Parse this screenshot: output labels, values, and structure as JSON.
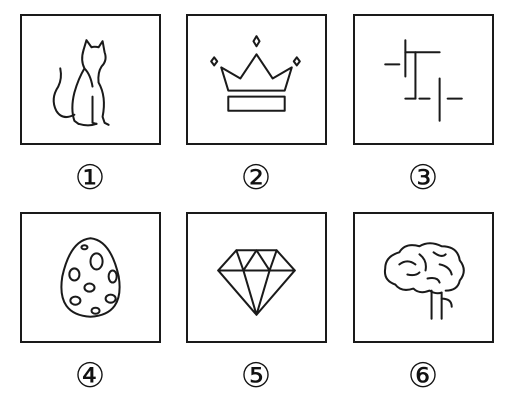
{
  "panels": [
    {
      "number": "①",
      "icon": "cat-icon"
    },
    {
      "number": "②",
      "icon": "crown-icon"
    },
    {
      "number": "③",
      "icon": "line-pattern-icon"
    },
    {
      "number": "④",
      "icon": "spotted-egg-icon"
    },
    {
      "number": "⑤",
      "icon": "diamond-icon"
    },
    {
      "number": "⑥",
      "icon": "brain-icon"
    }
  ],
  "colors": {
    "stroke": "#1a1a1a",
    "background": "#ffffff"
  }
}
